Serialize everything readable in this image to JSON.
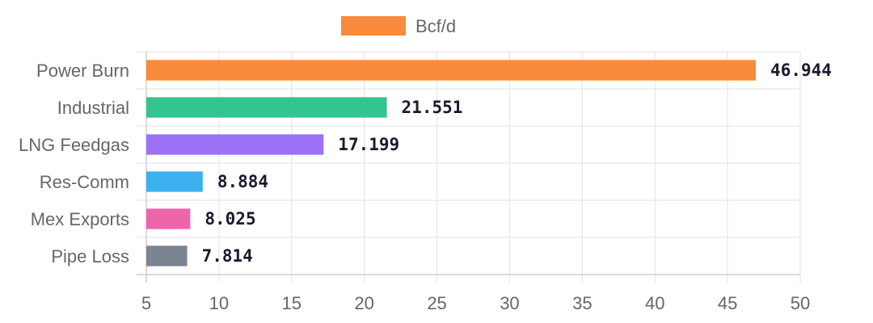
{
  "chart_data": {
    "type": "bar",
    "orientation": "horizontal",
    "categories": [
      "Power Burn",
      "Industrial",
      "LNG Feedgas",
      "Res-Comm",
      "Mex Exports",
      "Pipe Loss"
    ],
    "series": [
      {
        "name": "Bcf/d",
        "values": [
          46.944,
          21.551,
          17.199,
          8.884,
          8.025,
          7.814
        ],
        "colors": [
          "#f98b3c",
          "#34c48f",
          "#9b72f5",
          "#3bb2ef",
          "#ee65ab",
          "#7c8391"
        ],
        "value_labels": [
          "46.944",
          "21.551",
          "17.199",
          "8.884",
          "8.025",
          "7.814"
        ]
      }
    ],
    "legend": {
      "label": "Bcf/d",
      "color": "#f98b3c",
      "position": "top"
    },
    "xlim": [
      5,
      50
    ],
    "xticks": [
      5,
      10,
      15,
      20,
      25,
      30,
      35,
      40,
      45,
      50
    ],
    "xtick_labels": [
      "5",
      "10",
      "15",
      "20",
      "25",
      "30",
      "35",
      "40",
      "45",
      "50"
    ],
    "grid": true
  }
}
